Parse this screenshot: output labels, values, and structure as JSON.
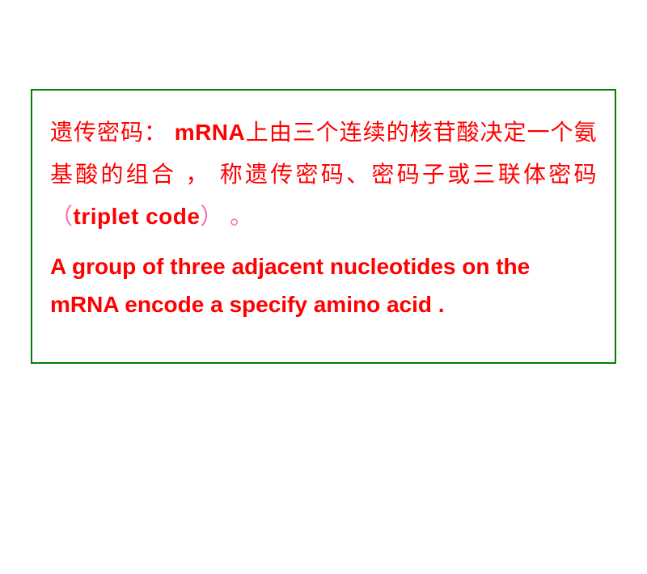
{
  "box": {
    "border_color": "#008000",
    "bg_color": "#ffffff"
  },
  "cn": {
    "t1": "遗传密码：",
    "t2": "mRNA",
    "t3": "上由三个连续的核苷酸决定一个氨基酸的组合 ， 称遗传密码、密码子或三联体密码",
    "t4": "（",
    "t5": "triplet code",
    "t6": "） 。"
  },
  "en": {
    "line": "A group of three adjacent nucleotides on the mRNA encode a specify amino acid ."
  },
  "colors": {
    "text_red": "#ff0000",
    "text_pink": "#ff66b2",
    "border_green": "#008000"
  },
  "fontsize": {
    "body": 28
  }
}
